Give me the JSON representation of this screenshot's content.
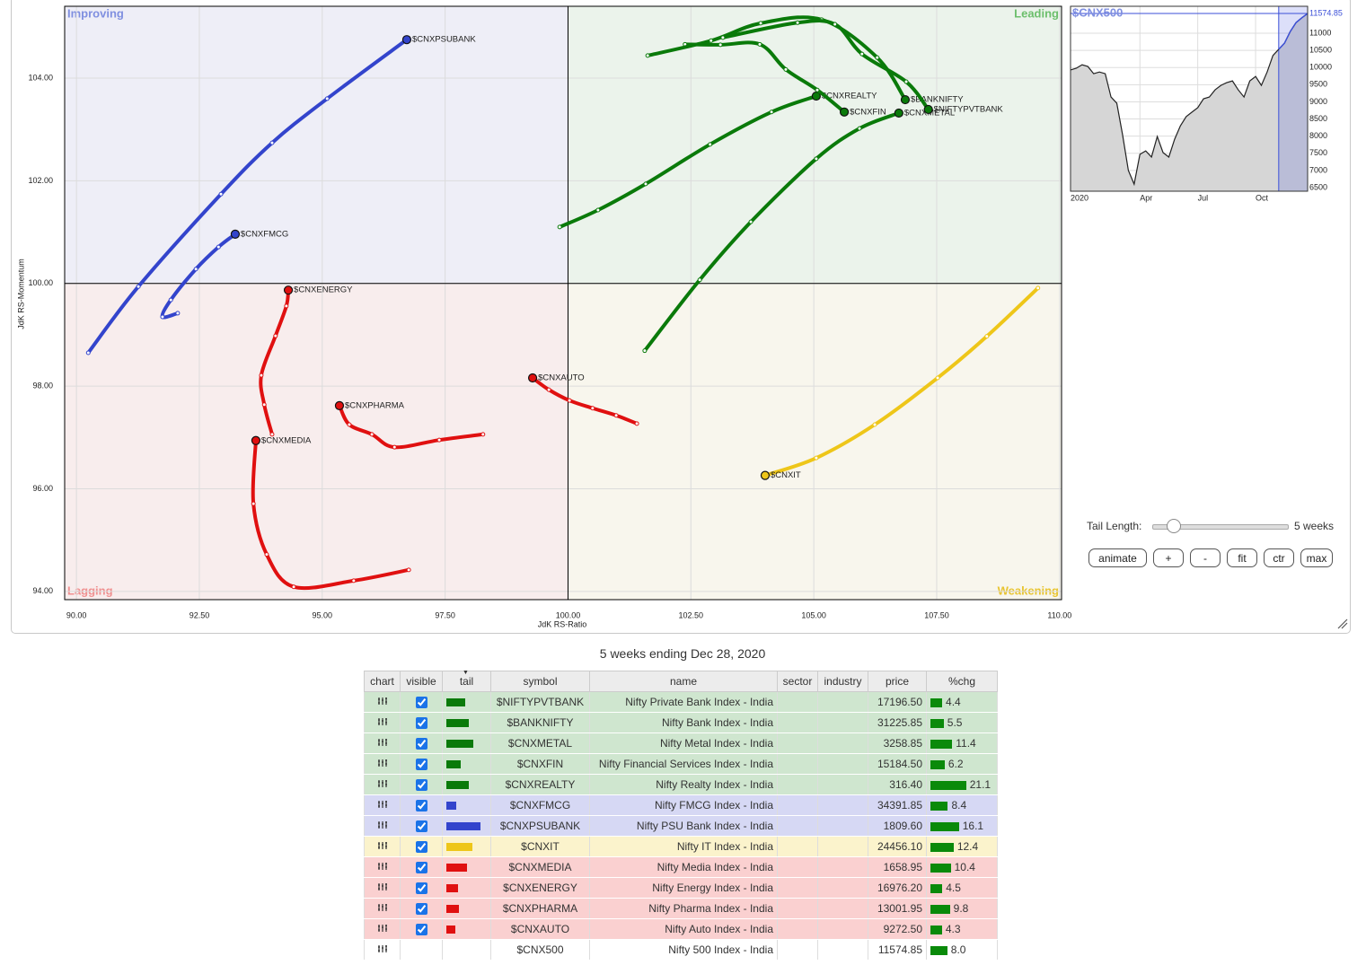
{
  "chart_data": [
    {
      "type": "rrg",
      "x_label": "JdK RS-Ratio",
      "y_label": "JdK RS-Momentum",
      "quadrants": {
        "improving": "Improving",
        "leading": "Leading",
        "lagging": "Lagging",
        "weakening": "Weakening"
      },
      "center": {
        "x": 100,
        "y": 100
      },
      "xlim": [
        89.76,
        110.04
      ],
      "ylim": [
        93.84,
        105.4
      ],
      "grid": true,
      "xticks": [
        {
          "value": 90,
          "label": "90.00"
        },
        {
          "value": 92.5,
          "label": "92.50"
        },
        {
          "value": 95,
          "label": "95.00"
        },
        {
          "value": 97.5,
          "label": "97.50"
        },
        {
          "value": 100,
          "label": "100.00"
        },
        {
          "value": 102.5,
          "label": "102.50"
        },
        {
          "value": 105,
          "label": "105.00"
        },
        {
          "value": 107.5,
          "label": "107.50"
        },
        {
          "value": 110,
          "label": "110.00"
        }
      ],
      "yticks": [
        {
          "value": 94,
          "label": "94.00"
        },
        {
          "value": 96,
          "label": "96.00"
        },
        {
          "value": 98,
          "label": "98.00"
        },
        {
          "value": 100,
          "label": "100.00"
        },
        {
          "value": 102,
          "label": "102.00"
        },
        {
          "value": 104,
          "label": "104.00"
        }
      ],
      "series": [
        {
          "name": "$CNXPSUBANK",
          "color": "#3344cc",
          "x": [
            90.24,
            91.26,
            92.94,
            93.98,
            95.1,
            96.72
          ],
          "values": [
            98.65,
            99.94,
            101.74,
            102.74,
            103.6,
            104.75
          ]
        },
        {
          "name": "$CNXFMCG",
          "color": "#3344cc",
          "x": [
            92.06,
            91.75,
            91.92,
            92.43,
            92.89,
            93.23
          ],
          "values": [
            99.42,
            99.35,
            99.68,
            100.28,
            100.71,
            100.96
          ]
        },
        {
          "name": "$CNXENERGY",
          "color": "#e01010",
          "x": [
            93.98,
            93.82,
            93.76,
            94.05,
            94.27,
            94.31
          ],
          "values": [
            97.06,
            97.64,
            98.21,
            98.98,
            99.56,
            99.87
          ]
        },
        {
          "name": "$CNXMEDIA",
          "color": "#e01010",
          "x": [
            96.76,
            95.64,
            94.42,
            93.87,
            93.6,
            93.65
          ],
          "values": [
            94.42,
            94.21,
            94.09,
            94.72,
            95.71,
            96.94
          ]
        },
        {
          "name": "$CNXPHARMA",
          "color": "#e01010",
          "x": [
            98.27,
            97.38,
            96.47,
            96.01,
            95.55,
            95.35
          ],
          "values": [
            97.06,
            96.95,
            96.81,
            97.06,
            97.25,
            97.62
          ]
        },
        {
          "name": "$CNXAUTO",
          "color": "#e01010",
          "x": [
            101.4,
            100.98,
            100.5,
            100.03,
            99.61,
            99.28
          ],
          "values": [
            97.27,
            97.43,
            97.57,
            97.72,
            97.93,
            98.16
          ]
        },
        {
          "name": "$CNXIT",
          "color": "#eec619",
          "x": [
            109.56,
            108.52,
            107.52,
            106.24,
            105.05,
            104.01
          ],
          "values": [
            99.91,
            98.97,
            98.16,
            97.25,
            96.6,
            96.26
          ]
        },
        {
          "name": "$CNXREALTY",
          "color": "#0a7a0a",
          "x": [
            99.83,
            100.61,
            101.58,
            102.89,
            104.14,
            105.05
          ],
          "values": [
            101.1,
            101.43,
            101.94,
            102.71,
            103.34,
            103.65
          ]
        },
        {
          "name": "$CNXMETAL",
          "color": "#0a7a0a",
          "x": [
            101.56,
            102.68,
            103.72,
            105.05,
            105.93,
            106.73
          ],
          "values": [
            98.69,
            100.07,
            101.2,
            102.43,
            103.02,
            103.32
          ]
        },
        {
          "name": "$CNXFIN",
          "color": "#0a7a0a",
          "x": [
            102.38,
            103.1,
            103.9,
            104.43,
            105.07,
            105.62
          ],
          "values": [
            104.66,
            104.65,
            104.66,
            104.17,
            103.77,
            103.34
          ]
        },
        {
          "name": "$BANKNIFTY",
          "color": "#0a7a0a",
          "x": [
            101.62,
            102.91,
            103.92,
            105.16,
            106.29,
            106.86
          ],
          "values": [
            104.44,
            104.73,
            105.07,
            105.14,
            104.4,
            103.58
          ]
        },
        {
          "name": "$NIFTYPVTBANK",
          "color": "#0a7a0a",
          "x": [
            103.15,
            104.67,
            105.43,
            105.98,
            106.88,
            107.33
          ],
          "values": [
            104.79,
            105.08,
            105.05,
            104.47,
            103.93,
            103.39
          ]
        }
      ]
    },
    {
      "type": "area",
      "title": "$CNX500",
      "color": "#222222",
      "categories": [
        "2020",
        null,
        null,
        null,
        null,
        null,
        null,
        null,
        null,
        null,
        null,
        null,
        "Apr",
        null,
        null,
        null,
        null,
        null,
        null,
        null,
        null,
        null,
        "Jul",
        null,
        null,
        null,
        null,
        null,
        null,
        null,
        null,
        null,
        "Oct",
        null,
        null,
        null,
        null,
        null,
        null,
        null,
        null,
        null
      ],
      "values": [
        9930,
        9980,
        10080,
        10030,
        9820,
        9870,
        9820,
        9140,
        8960,
        8040,
        7000,
        6600,
        7470,
        7570,
        7390,
        7990,
        7520,
        7390,
        7910,
        8300,
        8570,
        8700,
        8830,
        9090,
        9140,
        9350,
        9480,
        9560,
        9610,
        9350,
        9140,
        9610,
        9740,
        9480,
        9870,
        10350,
        10530,
        10710,
        11050,
        11310,
        11450,
        11575
      ],
      "ylim": [
        6395,
        11785
      ],
      "yticks": [
        6500,
        7000,
        7500,
        8000,
        8500,
        9000,
        9500,
        10000,
        10500,
        11000
      ],
      "last_value": 11574.85,
      "grid": true
    }
  ],
  "controls": {
    "tail_label": "Tail Length:",
    "tail_value": "5 weeks",
    "buttons": [
      "animate",
      "+",
      "-",
      "fit",
      "ctr",
      "max"
    ]
  },
  "caption": "5 weeks ending Dec 28, 2020",
  "table": {
    "headers": [
      "chart",
      "visible",
      "tail",
      "symbol",
      "name",
      "sector",
      "industry",
      "price",
      "%chg"
    ],
    "rows": [
      {
        "symbol": "$NIFTYPVTBANK",
        "name": "Nifty Private Bank Index - India",
        "price": "17196.50",
        "chg": "4.4",
        "visible": true
      },
      {
        "symbol": "$BANKNIFTY",
        "name": "Nifty Bank Index - India",
        "price": "31225.85",
        "chg": "5.5",
        "visible": true
      },
      {
        "symbol": "$CNXMETAL",
        "name": "Nifty Metal Index - India",
        "price": "3258.85",
        "chg": "11.4",
        "visible": true
      },
      {
        "symbol": "$CNXFIN",
        "name": "Nifty Financial Services Index - India",
        "price": "15184.50",
        "chg": "6.2",
        "visible": true
      },
      {
        "symbol": "$CNXREALTY",
        "name": "Nifty Realty Index - India",
        "price": "316.40",
        "chg": "21.1",
        "visible": true
      },
      {
        "symbol": "$CNXFMCG",
        "name": "Nifty FMCG Index - India",
        "price": "34391.85",
        "chg": "8.4",
        "visible": true
      },
      {
        "symbol": "$CNXPSUBANK",
        "name": "Nifty PSU Bank Index - India",
        "price": "1809.60",
        "chg": "16.1",
        "visible": true
      },
      {
        "symbol": "$CNXIT",
        "name": "Nifty IT Index - India",
        "price": "24456.10",
        "chg": "12.4",
        "visible": true
      },
      {
        "symbol": "$CNXMEDIA",
        "name": "Nifty Media Index - India",
        "price": "1658.95",
        "chg": "10.4",
        "visible": true
      },
      {
        "symbol": "$CNXENERGY",
        "name": "Nifty Energy Index - India",
        "price": "16976.20",
        "chg": "4.5",
        "visible": true
      },
      {
        "symbol": "$CNXPHARMA",
        "name": "Nifty Pharma Index - India",
        "price": "13001.95",
        "chg": "9.8",
        "visible": true
      },
      {
        "symbol": "$CNXAUTO",
        "name": "Nifty Auto Index - India",
        "price": "9272.50",
        "chg": "4.3",
        "visible": true
      },
      {
        "symbol": "$CNX500",
        "name": "Nifty 500 Index - India",
        "price": "11574.85",
        "chg": "8.0"
      }
    ]
  }
}
